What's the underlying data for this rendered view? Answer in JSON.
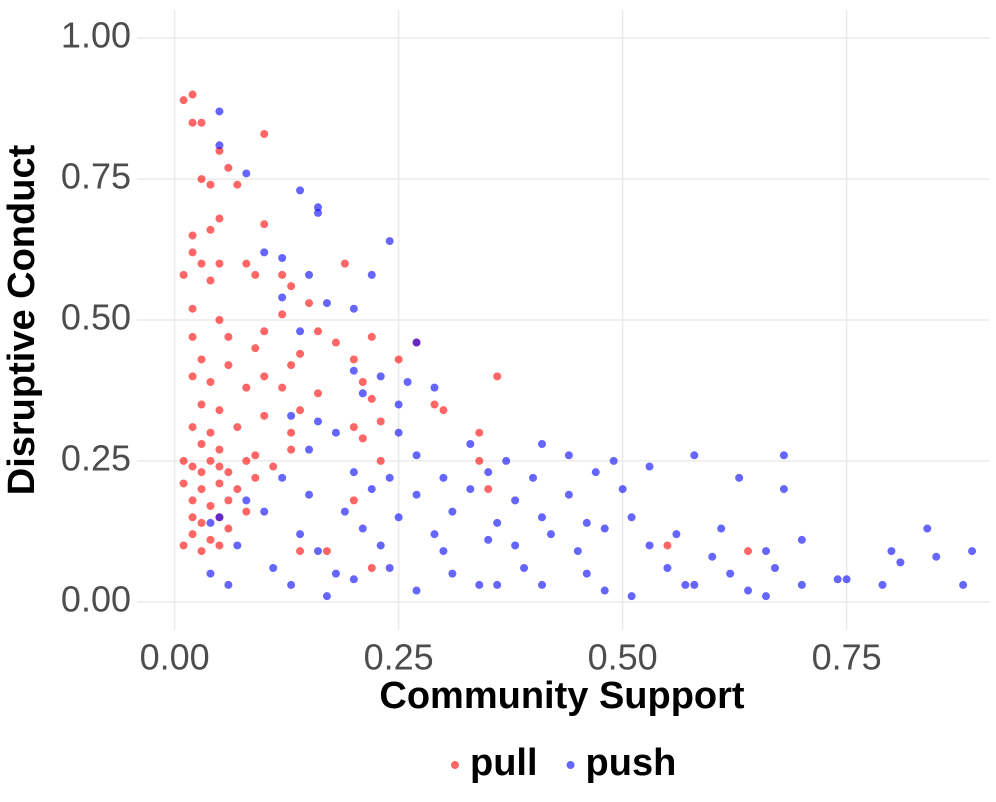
{
  "chart_data": {
    "type": "scatter",
    "x_label": "Community Support",
    "y_label": "Disruptive Conduct",
    "xlim": [
      -0.042,
      0.91
    ],
    "ylim": [
      -0.05,
      1.05
    ],
    "xticks": [
      {
        "value": 0,
        "label": "0.00"
      },
      0.25,
      {
        "value": 0.5,
        "label": "0.50"
      },
      0.75
    ],
    "yticks": [
      {
        "value": 0,
        "label": "0.00"
      },
      0.25,
      {
        "value": 0.5,
        "label": "0.50"
      },
      0.75,
      {
        "value": 1,
        "label": "1.00"
      }
    ],
    "grid": true,
    "legend": "bottom",
    "opacity": 0.6,
    "series": [
      {
        "name": "pull",
        "color": "#ff0000",
        "x": [
          0.01,
          0.02,
          0.02,
          0.03,
          0.05,
          0.1,
          0.03,
          0.04,
          0.06,
          0.07,
          0.02,
          0.04,
          0.05,
          0.1,
          0.02,
          0.03,
          0.05,
          0.08,
          0.12,
          0.19,
          0.01,
          0.04,
          0.09,
          0.13,
          0.15,
          0.02,
          0.05,
          0.1,
          0.12,
          0.16,
          0.02,
          0.06,
          0.09,
          0.14,
          0.18,
          0.22,
          0.03,
          0.06,
          0.1,
          0.13,
          0.2,
          0.25,
          0.27,
          0.02,
          0.04,
          0.08,
          0.12,
          0.16,
          0.21,
          0.36,
          0.03,
          0.05,
          0.1,
          0.14,
          0.22,
          0.29,
          0.3,
          0.02,
          0.04,
          0.07,
          0.13,
          0.2,
          0.23,
          0.34,
          0.03,
          0.05,
          0.09,
          0.13,
          0.21,
          0.01,
          0.02,
          0.03,
          0.04,
          0.05,
          0.06,
          0.08,
          0.11,
          0.23,
          0.34,
          0.01,
          0.03,
          0.05,
          0.07,
          0.09,
          0.35,
          0.02,
          0.04,
          0.06,
          0.2,
          0.02,
          0.03,
          0.05,
          0.08,
          0.02,
          0.04,
          0.06,
          0.01,
          0.03,
          0.05,
          0.17,
          0.14,
          0.22,
          0.55,
          0.64
        ],
        "values": [
          0.89,
          0.9,
          0.85,
          0.85,
          0.8,
          0.83,
          0.75,
          0.74,
          0.77,
          0.74,
          0.65,
          0.66,
          0.68,
          0.67,
          0.62,
          0.6,
          0.6,
          0.6,
          0.58,
          0.6,
          0.58,
          0.57,
          0.58,
          0.56,
          0.53,
          0.52,
          0.5,
          0.48,
          0.51,
          0.48,
          0.47,
          0.47,
          0.45,
          0.44,
          0.46,
          0.47,
          0.43,
          0.42,
          0.4,
          0.42,
          0.43,
          0.43,
          0.46,
          0.4,
          0.39,
          0.38,
          0.38,
          0.37,
          0.39,
          0.4,
          0.35,
          0.34,
          0.33,
          0.34,
          0.36,
          0.35,
          0.34,
          0.31,
          0.3,
          0.31,
          0.3,
          0.31,
          0.32,
          0.3,
          0.28,
          0.27,
          0.26,
          0.27,
          0.29,
          0.25,
          0.24,
          0.23,
          0.25,
          0.24,
          0.23,
          0.25,
          0.24,
          0.25,
          0.25,
          0.21,
          0.2,
          0.21,
          0.2,
          0.22,
          0.2,
          0.18,
          0.17,
          0.18,
          0.18,
          0.15,
          0.14,
          0.15,
          0.16,
          0.12,
          0.11,
          0.13,
          0.1,
          0.09,
          0.1,
          0.09,
          0.09,
          0.06,
          0.1,
          0.09
        ]
      },
      {
        "name": "push",
        "color": "#0000ff",
        "x": [
          0.05,
          0.05,
          0.08,
          0.14,
          0.16,
          0.16,
          0.24,
          0.1,
          0.12,
          0.22,
          0.15,
          0.2,
          0.12,
          0.17,
          0.14,
          0.27,
          0.2,
          0.23,
          0.26,
          0.29,
          0.21,
          0.25,
          0.13,
          0.16,
          0.18,
          0.25,
          0.33,
          0.41,
          0.15,
          0.27,
          0.37,
          0.44,
          0.49,
          0.58,
          0.68,
          0.12,
          0.2,
          0.24,
          0.3,
          0.35,
          0.4,
          0.47,
          0.53,
          0.63,
          0.08,
          0.15,
          0.22,
          0.27,
          0.33,
          0.38,
          0.44,
          0.5,
          0.68,
          0.05,
          0.1,
          0.19,
          0.25,
          0.31,
          0.36,
          0.41,
          0.46,
          0.51,
          0.04,
          0.14,
          0.21,
          0.29,
          0.35,
          0.42,
          0.48,
          0.56,
          0.61,
          0.7,
          0.84,
          0.07,
          0.16,
          0.23,
          0.3,
          0.38,
          0.45,
          0.53,
          0.6,
          0.66,
          0.8,
          0.85,
          0.89,
          0.04,
          0.11,
          0.18,
          0.24,
          0.31,
          0.39,
          0.46,
          0.55,
          0.62,
          0.67,
          0.74,
          0.81,
          0.06,
          0.13,
          0.2,
          0.27,
          0.34,
          0.41,
          0.48,
          0.57,
          0.64,
          0.7,
          0.75,
          0.79,
          0.88,
          0.17,
          0.36,
          0.51,
          0.66,
          0.58
        ],
        "values": [
          0.87,
          0.81,
          0.76,
          0.73,
          0.7,
          0.69,
          0.64,
          0.62,
          0.61,
          0.58,
          0.58,
          0.52,
          0.54,
          0.53,
          0.48,
          0.46,
          0.41,
          0.4,
          0.39,
          0.38,
          0.37,
          0.35,
          0.33,
          0.32,
          0.3,
          0.3,
          0.28,
          0.28,
          0.27,
          0.26,
          0.25,
          0.26,
          0.25,
          0.26,
          0.26,
          0.22,
          0.23,
          0.22,
          0.22,
          0.23,
          0.22,
          0.23,
          0.24,
          0.22,
          0.18,
          0.19,
          0.2,
          0.19,
          0.2,
          0.18,
          0.19,
          0.2,
          0.2,
          0.15,
          0.16,
          0.16,
          0.15,
          0.16,
          0.14,
          0.15,
          0.14,
          0.15,
          0.14,
          0.12,
          0.13,
          0.12,
          0.11,
          0.12,
          0.13,
          0.12,
          0.13,
          0.11,
          0.13,
          0.1,
          0.09,
          0.1,
          0.09,
          0.1,
          0.09,
          0.1,
          0.08,
          0.09,
          0.09,
          0.08,
          0.09,
          0.05,
          0.06,
          0.05,
          0.06,
          0.05,
          0.06,
          0.05,
          0.06,
          0.05,
          0.06,
          0.04,
          0.07,
          0.03,
          0.03,
          0.04,
          0.02,
          0.03,
          0.03,
          0.02,
          0.03,
          0.02,
          0.03,
          0.04,
          0.03,
          0.03,
          0.01,
          0.03,
          0.01,
          0.01,
          0.03
        ]
      }
    ]
  }
}
